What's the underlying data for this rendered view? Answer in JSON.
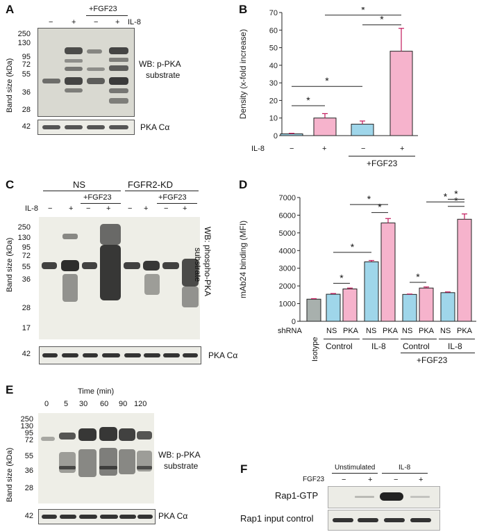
{
  "panels": {
    "a": {
      "label": "A",
      "plus_fgf23": "+FGF23",
      "il8": "IL-8",
      "signs": [
        "−",
        "+",
        "−",
        "+"
      ],
      "axis_title": "Band size (kDa)",
      "markers": [
        "250",
        "130",
        "95",
        "72",
        "55",
        "36",
        "28"
      ],
      "wb_label": "WB: p-PKA",
      "wb_label2": "substrate",
      "control_marker": "42",
      "control_label": "PKA Cα"
    },
    "b": {
      "label": "B",
      "il8": "IL-8",
      "signs": [
        "−",
        "+",
        "−",
        "+"
      ],
      "group": "+FGF23"
    },
    "c": {
      "label": "C",
      "group_ns": "NS",
      "group_kd": "FGFR2-KD",
      "plus_fgf23": "+FGF23",
      "il8": "IL-8",
      "signs": [
        "−",
        "+",
        "−",
        "+",
        "−",
        "+",
        "−",
        "+"
      ],
      "axis_title": "Band size (kDa)",
      "markers": [
        "250",
        "130",
        "95",
        "72",
        "55",
        "36",
        "28",
        "17"
      ],
      "wb_label": "WB: phospho-PKA",
      "wb_label2": "substrate",
      "control_marker": "42",
      "control_label": "PKA Cα"
    },
    "d": {
      "label": "D",
      "shrna": "shRNA",
      "bar_labels": [
        "Isotype",
        "NS",
        "PKA",
        "NS",
        "PKA",
        "NS",
        "PKA",
        "NS",
        "PKA"
      ],
      "groups": [
        "Control",
        "IL-8",
        "Control",
        "IL-8"
      ],
      "fgf23": "+FGF23"
    },
    "e": {
      "label": "E",
      "time_title": "Time (min)",
      "times": [
        "0",
        "5",
        "30",
        "60",
        "90",
        "120"
      ],
      "axis_title": "Band size (kDa)",
      "markers": [
        "250",
        "130",
        "95",
        "72",
        "55",
        "36",
        "28"
      ],
      "wb_label": "WB: p-PKA",
      "wb_label2": "substrate",
      "control_marker": "42",
      "control_label": "PKA Cα"
    },
    "f": {
      "label": "F",
      "unstim": "Unstimulated",
      "il8": "IL-8",
      "fgf23": "FGF23",
      "signs": [
        "−",
        "+",
        "−",
        "+"
      ],
      "row1": "Rap1-GTP",
      "row2": "Rap1 input control"
    }
  },
  "chart_data": [
    {
      "type": "bar",
      "panel": "B",
      "ylabel": "Density (x-fold increase)",
      "ylim": [
        0,
        70
      ],
      "yticks": [
        "0",
        "10",
        "20",
        "30",
        "40",
        "50",
        "60",
        "70"
      ],
      "categories": [
        "IL-8 −",
        "IL-8 +",
        "+FGF23 IL-8 −",
        "+FGF23 IL-8 +"
      ],
      "values": [
        1,
        10,
        6.5,
        48
      ],
      "errors": [
        0.3,
        2.5,
        1.8,
        13
      ],
      "colors": [
        "#9fd6ea",
        "#f6b3cc",
        "#9fd6ea",
        "#f6b3cc"
      ],
      "significance": [
        "*",
        "*",
        "*",
        "*"
      ]
    },
    {
      "type": "bar",
      "panel": "D",
      "ylabel": "mAb24 binding (MFI)",
      "ylim": [
        0,
        7000
      ],
      "yticks": [
        "0",
        "1000",
        "2000",
        "3000",
        "4000",
        "5000",
        "6000",
        "7000"
      ],
      "categories": [
        "Isotype",
        "Control NS",
        "Control PKA",
        "IL-8 NS",
        "IL-8 PKA",
        "+FGF23 Control NS",
        "+FGF23 Control PKA",
        "+FGF23 IL-8 NS",
        "+FGF23 IL-8 PKA"
      ],
      "values": [
        1250,
        1530,
        1830,
        3360,
        5560,
        1520,
        1880,
        1620,
        5770
      ],
      "errors": [
        30,
        40,
        50,
        80,
        250,
        20,
        60,
        40,
        300
      ],
      "colors": [
        "#a8b0ad",
        "#9fd6ea",
        "#f6b3cc",
        "#9fd6ea",
        "#f6b3cc",
        "#9fd6ea",
        "#f6b3cc",
        "#9fd6ea",
        "#f6b3cc"
      ],
      "significance": [
        "*",
        "*",
        "*",
        "*",
        "*",
        "*",
        "*",
        "*"
      ]
    }
  ]
}
